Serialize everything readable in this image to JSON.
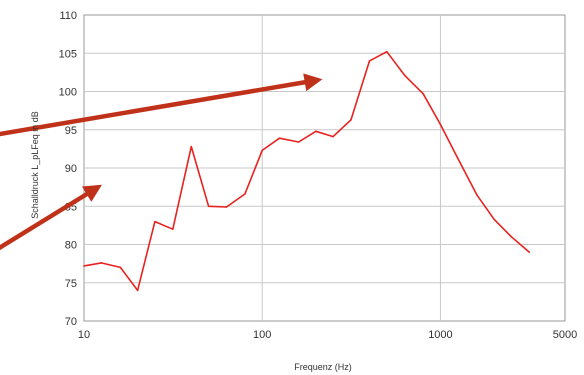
{
  "chart_data": {
    "type": "line",
    "title": "",
    "xlabel": "Frequenz (Hz)",
    "ylabel": "Schalldruck L_pLFeq in dB",
    "xscale": "log",
    "xlim": [
      10,
      5000
    ],
    "ylim": [
      70,
      110
    ],
    "x_ticks": [
      "10",
      "100",
      "1000",
      "5000"
    ],
    "y_ticks": [
      "70",
      "75",
      "80",
      "85",
      "90",
      "95",
      "100",
      "105",
      "110"
    ],
    "grid": true,
    "legend": "none",
    "series": [
      {
        "color": "#e8231f",
        "x": [
          10,
          12.5,
          16,
          20,
          25,
          31.5,
          40,
          50,
          63,
          80,
          100,
          125,
          160,
          200,
          250,
          315,
          400,
          500,
          630,
          800,
          1000,
          1250,
          1600,
          2000,
          2500,
          3150
        ],
        "y": [
          77.2,
          77.6,
          77.0,
          74.0,
          83.0,
          82.0,
          92.8,
          85.0,
          84.9,
          86.6,
          92.3,
          93.9,
          93.4,
          94.8,
          94.1,
          96.3,
          104.0,
          105.2,
          102.1,
          99.7,
          95.7,
          91.3,
          86.5,
          83.3,
          81.0,
          79.0
        ]
      }
    ],
    "annotations": [
      {
        "type": "arrow",
        "color": "#c0311a",
        "from": [
          -20,
          94
        ],
        "to": [
          4.6,
          101.5
        ]
      },
      {
        "type": "arrow",
        "color": "#c0311a",
        "from": [
          -20,
          78
        ],
        "to": [
          12,
          87.5
        ]
      }
    ]
  }
}
